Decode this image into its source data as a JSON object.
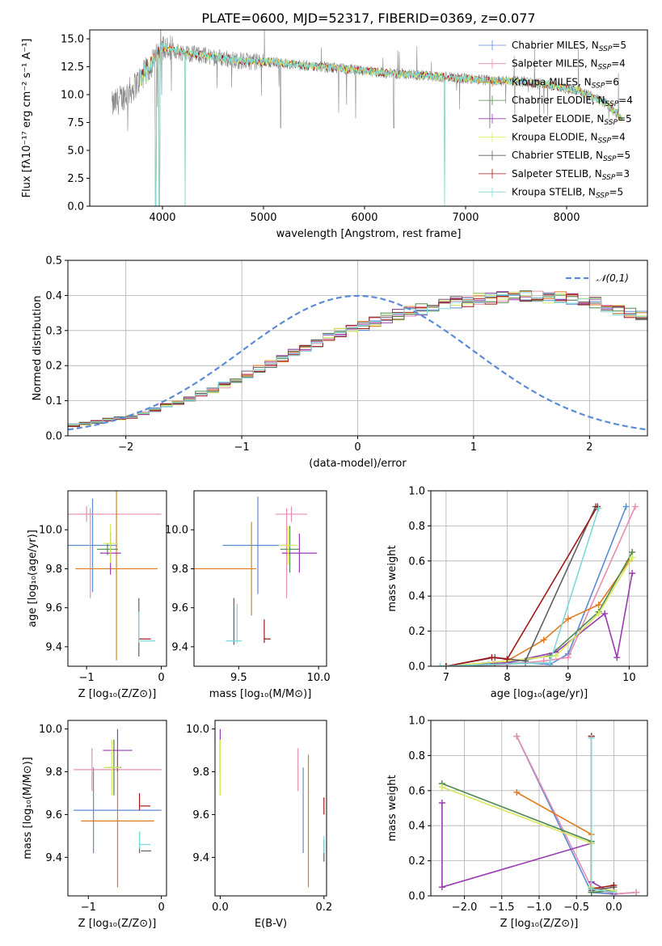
{
  "colors": [
    "#5b8bd6",
    "#e88cb0",
    "#e07b20",
    "#4e8a4e",
    "#9a3aaf",
    "#d8e860",
    "#606060",
    "#a01818",
    "#7fd8d8"
  ],
  "chart_data": [
    {
      "type": "line",
      "title": "PLATE=0600, MJD=52317, FIBERID=0369, z=0.077",
      "xlabel": "wavelength [Angstrom, rest frame]",
      "ylabel": "Flux [fλ10⁻¹⁷ erg cm⁻² s⁻¹ A⁻¹]",
      "xlim": [
        3280,
        8800
      ],
      "ylim": [
        0,
        15.8
      ],
      "xticks": [
        4000,
        5000,
        6000,
        7000,
        8000
      ],
      "xtick_labels": [
        "4000",
        "5000",
        "6000",
        "7000",
        "8000"
      ],
      "yticks": [
        0,
        2.5,
        5,
        7.5,
        10,
        12.5,
        15
      ],
      "ytick_labels": [
        "0.0",
        "2.5",
        "5.0",
        "7.5",
        "10.0",
        "12.5",
        "15.0"
      ],
      "grid": false,
      "legend": "top-right",
      "legend_entries": [
        "Chabrier MILES, N_SSP=5",
        "Salpeter MILES, N_SSP=4",
        "Kroupa MILES, N_SSP=6",
        "Chabrier ELODIE, N_SSP=4",
        "Salpeter ELODIE, N_SSP=5",
        "Kroupa ELODIE, N_SSP=4",
        "Chabrier STELIB, N_SSP=5",
        "Salpeter STELIB, N_SSP=3",
        "Kroupa STELIB, N_SSP=5"
      ],
      "model_continuum": {
        "x": [
          3500,
          3700,
          3900,
          4000,
          4200,
          4500,
          4800,
          5100,
          5400,
          5700,
          6000,
          6300,
          6600,
          6900,
          7200,
          7500,
          7800,
          8100,
          8400,
          8550
        ],
        "y": [
          9.0,
          10.5,
          12.8,
          14.2,
          13.8,
          13.4,
          13.0,
          12.9,
          12.6,
          12.4,
          12.1,
          11.9,
          11.7,
          11.5,
          11.3,
          11.2,
          10.9,
          10.4,
          9.2,
          7.8
        ]
      }
    },
    {
      "type": "step",
      "xlabel": "(data-model)/error",
      "ylabel": "Normed distribution",
      "xlim": [
        -2.5,
        2.5
      ],
      "ylim": [
        0,
        0.5
      ],
      "xticks": [
        -2,
        -1,
        0,
        1,
        2
      ],
      "xtick_labels": [
        "−2",
        "−1",
        "0",
        "1",
        "2"
      ],
      "yticks": [
        0,
        0.1,
        0.2,
        0.3,
        0.4,
        0.5
      ],
      "ytick_labels": [
        "0.0",
        "0.1",
        "0.2",
        "0.3",
        "0.4",
        "0.5"
      ],
      "grid": true,
      "legend": "top-right",
      "legend_entries": [
        "𝒩(0,1)"
      ],
      "bin_width": 0.1,
      "bin_start": -2.5,
      "envelope": [
        0.03,
        0.035,
        0.04,
        0.045,
        0.05,
        0.055,
        0.065,
        0.075,
        0.085,
        0.095,
        0.105,
        0.12,
        0.13,
        0.145,
        0.16,
        0.175,
        0.19,
        0.205,
        0.22,
        0.235,
        0.25,
        0.265,
        0.28,
        0.295,
        0.305,
        0.315,
        0.325,
        0.335,
        0.345,
        0.355,
        0.36,
        0.37,
        0.375,
        0.38,
        0.385,
        0.39,
        0.39,
        0.395,
        0.395,
        0.398,
        0.398,
        0.395,
        0.395,
        0.39,
        0.385,
        0.38,
        0.37,
        0.36,
        0.35,
        0.34,
        0.33,
        0.32,
        0.305,
        0.29,
        0.275,
        0.26,
        0.245,
        0.23,
        0.215,
        0.2,
        0.185,
        0.17,
        0.155,
        0.14,
        0.125,
        0.11,
        0.095,
        0.085,
        0.075,
        0.065,
        0.06,
        0.055,
        0.05,
        0.045,
        0.04,
        0.037,
        0.034,
        0.031,
        0.029,
        0.027,
        0.025,
        0.023,
        0.022,
        0.021,
        0.02,
        0.02,
        0.02,
        0.02,
        0.02,
        0.02
      ]
    },
    {
      "type": "errorbar",
      "xlabel": "Z [log₁₀(Z/Z⊙)]",
      "ylabel": "age  [log₁₀(age/yr)]",
      "xlim": [
        -1.25,
        0.07
      ],
      "ylim": [
        9.3,
        10.2
      ],
      "xticks": [
        -1,
        0
      ],
      "xtick_labels": [
        "−1",
        "0"
      ],
      "yticks": [
        9.4,
        9.6,
        9.8,
        10.0
      ],
      "ytick_labels": [
        "9.4",
        "9.6",
        "9.8",
        "10.0"
      ],
      "points": [
        {
          "x": -0.92,
          "xe": 0.33,
          "y": 9.92,
          "ye": 0.24,
          "c": 0
        },
        {
          "x": -1.0,
          "xe": 0.25,
          "y": 10.08,
          "ye": 0.04,
          "c": 1
        },
        {
          "x": -0.55,
          "xe": 0.55,
          "y": 10.08,
          "ye": 0.0,
          "c": 1
        },
        {
          "x": -0.95,
          "xe": 0.0,
          "y": 9.88,
          "ye": 0.23,
          "c": 1
        },
        {
          "x": -0.6,
          "xe": 0.55,
          "y": 9.8,
          "ye": 0.47,
          "c": 2
        },
        {
          "x": -0.72,
          "xe": 0.14,
          "y": 9.9,
          "ye": 0.03,
          "c": 3
        },
        {
          "x": -0.68,
          "xe": 0.14,
          "y": 9.88,
          "ye": 0.11,
          "c": 4
        },
        {
          "x": -0.68,
          "xe": 0.1,
          "y": 9.93,
          "ye": 0.1,
          "c": 5
        },
        {
          "x": -0.3,
          "xe": 0.0,
          "y": 9.5,
          "ye": 0.15,
          "c": 6
        },
        {
          "x": -0.22,
          "xe": 0.08,
          "y": 9.44,
          "ye": 0.0,
          "c": 7
        },
        {
          "x": -0.3,
          "xe": 0.0,
          "y": 9.5,
          "ye": 0.08,
          "c": 8
        },
        {
          "x": -0.18,
          "xe": 0.1,
          "y": 9.43,
          "ye": 0.0,
          "c": 8
        }
      ]
    },
    {
      "type": "errorbar",
      "xlabel": "mass [log₁₀(M/M⊙)]",
      "ylabel": "",
      "xlim": [
        9.22,
        10.05
      ],
      "ylim": [
        9.3,
        10.2
      ],
      "xticks": [
        9.5,
        10.0
      ],
      "xtick_labels": [
        "9.5",
        "10.0"
      ],
      "yticks": [
        9.4,
        9.6,
        9.8,
        10.0
      ],
      "ytick_labels": [
        "9.4",
        "9.6",
        "9.8",
        "10.0"
      ],
      "points": [
        {
          "x": 9.62,
          "xe": 0.22,
          "y": 9.92,
          "ye": 0.25,
          "c": 0
        },
        {
          "x": 9.83,
          "xe": 0.1,
          "y": 10.08,
          "ye": 0.04,
          "c": 1
        },
        {
          "x": 9.8,
          "xe": 0.0,
          "y": 9.88,
          "ye": 0.23,
          "c": 1
        },
        {
          "x": 9.58,
          "xe": 0.0,
          "y": 9.8,
          "ye": 0.24,
          "c": 2
        },
        {
          "x": 9.39,
          "xe": 0.22,
          "y": 9.8,
          "ye": 0.0,
          "c": 2
        },
        {
          "x": 9.82,
          "xe": 0.06,
          "y": 9.9,
          "ye": 0.12,
          "c": 3
        },
        {
          "x": 9.88,
          "xe": 0.11,
          "y": 9.88,
          "ye": 0.1,
          "c": 4
        },
        {
          "x": 9.81,
          "xe": 0.06,
          "y": 9.92,
          "ye": 0.1,
          "c": 5
        },
        {
          "x": 9.47,
          "xe": 0.0,
          "y": 9.53,
          "ye": 0.12,
          "c": 6
        },
        {
          "x": 9.66,
          "xe": 0.0,
          "y": 9.48,
          "ye": 0.06,
          "c": 7
        },
        {
          "x": 9.68,
          "xe": 0.02,
          "y": 9.44,
          "ye": 0.0,
          "c": 7
        },
        {
          "x": 9.49,
          "xe": 0.0,
          "y": 9.52,
          "ye": 0.1,
          "c": 8
        },
        {
          "x": 9.47,
          "xe": 0.05,
          "y": 9.43,
          "ye": 0.0,
          "c": 8
        }
      ]
    },
    {
      "type": "line",
      "xlabel": "age  [log₁₀(age/yr)]",
      "ylabel": "mass weight",
      "xlim": [
        6.75,
        10.3
      ],
      "ylim": [
        0,
        1.0
      ],
      "xticks": [
        7,
        8,
        9,
        10
      ],
      "xtick_labels": [
        "7",
        "8",
        "9",
        "10"
      ],
      "yticks": [
        0,
        0.2,
        0.4,
        0.6,
        0.8,
        1.0
      ],
      "ytick_labels": [
        "0.0",
        "0.2",
        "0.4",
        "0.6",
        "0.8",
        "1.0"
      ],
      "grid": true,
      "series": [
        {
          "c": 0,
          "x": [
            7.0,
            8.3,
            8.7,
            9.0,
            9.95
          ],
          "y": [
            0.0,
            0.02,
            0.01,
            0.07,
            0.91
          ]
        },
        {
          "c": 1,
          "x": [
            7.0,
            8.0,
            8.6,
            9.0,
            10.1
          ],
          "y": [
            0.0,
            0.01,
            0.03,
            0.05,
            0.91
          ]
        },
        {
          "c": 2,
          "x": [
            7.0,
            8.0,
            8.6,
            9.0,
            9.5,
            10.0
          ],
          "y": [
            0.0,
            0.03,
            0.15,
            0.27,
            0.35,
            0.6
          ]
        },
        {
          "c": 3,
          "x": [
            7.0,
            7.8,
            8.7,
            9.5,
            10.05
          ],
          "y": [
            0.0,
            0.01,
            0.06,
            0.31,
            0.65
          ]
        },
        {
          "c": 4,
          "x": [
            7.0,
            8.0,
            8.8,
            9.6,
            9.8,
            10.05
          ],
          "y": [
            0.0,
            0.02,
            0.08,
            0.3,
            0.05,
            0.53
          ]
        },
        {
          "c": 5,
          "x": [
            7.0,
            8.0,
            8.8,
            9.5,
            10.05
          ],
          "y": [
            0.0,
            0.03,
            0.06,
            0.3,
            0.62
          ]
        },
        {
          "c": 6,
          "x": [
            7.0,
            7.8,
            8.3,
            9.45
          ],
          "y": [
            0.0,
            0.05,
            0.03,
            0.91
          ]
        },
        {
          "c": 7,
          "x": [
            7.0,
            7.75,
            8.0,
            9.48
          ],
          "y": [
            0.0,
            0.05,
            0.04,
            0.91
          ]
        },
        {
          "c": 8,
          "x": [
            6.9,
            7.7,
            8.7,
            9.5
          ],
          "y": [
            0.0,
            0.01,
            0.02,
            0.9
          ]
        }
      ]
    },
    {
      "type": "errorbar",
      "xlabel": "Z [log₁₀(Z/Z⊙)]",
      "ylabel": "mass [log₁₀(M/M⊙)]",
      "xlim": [
        -1.28,
        0.07
      ],
      "ylim": [
        9.22,
        10.04
      ],
      "xticks": [
        -1,
        0
      ],
      "xtick_labels": [
        "−1",
        "0"
      ],
      "yticks": [
        9.4,
        9.6,
        9.8,
        10.0
      ],
      "ytick_labels": [
        "9.4",
        "9.6",
        "9.8",
        "10.0"
      ],
      "points": [
        {
          "x": -0.6,
          "xe": 0.6,
          "y": 9.62,
          "ye": 0.0,
          "c": 0
        },
        {
          "x": -0.93,
          "xe": 0.0,
          "y": 9.62,
          "ye": 0.2,
          "c": 0
        },
        {
          "x": -0.6,
          "xe": 0.6,
          "y": 9.81,
          "ye": 0.0,
          "c": 1
        },
        {
          "x": -0.95,
          "xe": 0.0,
          "y": 9.81,
          "ye": 0.1,
          "c": 1
        },
        {
          "x": -0.6,
          "xe": 0.5,
          "y": 9.57,
          "ye": 0.0,
          "c": 2
        },
        {
          "x": -0.6,
          "xe": 0.0,
          "y": 9.57,
          "ye": 0.31,
          "c": 2
        },
        {
          "x": -0.65,
          "xe": 0.1,
          "y": 9.82,
          "ye": 0.13,
          "c": 3
        },
        {
          "x": -0.6,
          "xe": 0.2,
          "y": 9.9,
          "ye": 0.1,
          "c": 4
        },
        {
          "x": -0.68,
          "xe": 0.12,
          "y": 9.82,
          "ye": 0.13,
          "c": 5
        },
        {
          "x": -0.3,
          "xe": 0.0,
          "y": 9.47,
          "ye": 0.05,
          "c": 6
        },
        {
          "x": -0.21,
          "xe": 0.07,
          "y": 9.43,
          "ye": 0.0,
          "c": 6
        },
        {
          "x": -0.3,
          "xe": 0.0,
          "y": 9.66,
          "ye": 0.04,
          "c": 7
        },
        {
          "x": -0.22,
          "xe": 0.07,
          "y": 9.64,
          "ye": 0.0,
          "c": 7
        },
        {
          "x": -0.3,
          "xe": 0.0,
          "y": 9.48,
          "ye": 0.04,
          "c": 8
        },
        {
          "x": -0.22,
          "xe": 0.07,
          "y": 9.46,
          "ye": 0.0,
          "c": 8
        }
      ]
    },
    {
      "type": "errorbar",
      "xlabel": "E(B-V)",
      "ylabel": "",
      "xlim": [
        -0.01,
        0.205
      ],
      "ylim": [
        9.22,
        10.04
      ],
      "xticks": [
        0.0,
        0.2
      ],
      "xtick_labels": [
        "0.0",
        "0.2"
      ],
      "yticks": [
        9.4,
        9.6,
        9.8,
        10.0
      ],
      "ytick_labels": [
        "9.4",
        "9.6",
        "9.8",
        "10.0"
      ],
      "points": [
        {
          "x": 0.16,
          "xe": 0.0,
          "y": 9.62,
          "ye": 0.2,
          "c": 0
        },
        {
          "x": 0.15,
          "xe": 0.0,
          "y": 9.81,
          "ye": 0.1,
          "c": 1
        },
        {
          "x": 0.17,
          "xe": 0.0,
          "y": 9.57,
          "ye": 0.31,
          "c": 2
        },
        {
          "x": 0.0,
          "xe": 0.0,
          "y": 9.82,
          "ye": 0.13,
          "c": 3
        },
        {
          "x": 0.0,
          "xe": 0.0,
          "y": 9.9,
          "ye": 0.1,
          "c": 4
        },
        {
          "x": 0.0,
          "xe": 0.0,
          "y": 9.82,
          "ye": 0.13,
          "c": 5
        },
        {
          "x": 0.2,
          "xe": 0.0,
          "y": 9.43,
          "ye": 0.05,
          "c": 6
        },
        {
          "x": 0.2,
          "xe": 0.0,
          "y": 9.64,
          "ye": 0.04,
          "c": 7
        },
        {
          "x": 0.2,
          "xe": 0.0,
          "y": 9.46,
          "ye": 0.04,
          "c": 8
        }
      ]
    },
    {
      "type": "line",
      "xlabel": "Z [log₁₀(Z/Z⊙)]",
      "ylabel": "mass weight",
      "xlim": [
        -2.45,
        0.45
      ],
      "ylim": [
        0,
        1.0
      ],
      "xticks": [
        -2.0,
        -1.5,
        -1.0,
        -0.5,
        0.0
      ],
      "xtick_labels": [
        "−2.0",
        "−1.5",
        "−1.0",
        "−0.5",
        "0.0"
      ],
      "yticks": [
        0,
        0.2,
        0.4,
        0.6,
        0.8,
        1.0
      ],
      "ytick_labels": [
        "0.0",
        "0.2",
        "0.4",
        "0.6",
        "0.8",
        "1.0"
      ],
      "grid": true,
      "series": [
        {
          "c": 0,
          "x": [
            -1.3,
            -0.3,
            0.0,
            0.3
          ],
          "y": [
            0.91,
            0.02,
            0.01,
            0.02
          ]
        },
        {
          "c": 1,
          "x": [
            -1.3,
            -0.3,
            0.0,
            0.3
          ],
          "y": [
            0.91,
            0.05,
            0.01,
            0.02
          ]
        },
        {
          "c": 2,
          "x": [
            -1.3,
            -0.3,
            -0.3,
            0.0
          ],
          "y": [
            0.59,
            0.35,
            0.02,
            0.03
          ]
        },
        {
          "c": 3,
          "x": [
            -2.3,
            -0.3,
            -0.3,
            0.0
          ],
          "y": [
            0.64,
            0.31,
            0.02,
            0.03
          ]
        },
        {
          "c": 4,
          "x": [
            -2.3,
            -2.3,
            -0.3,
            -0.3,
            0.0
          ],
          "y": [
            0.53,
            0.05,
            0.3,
            0.08,
            0.01
          ]
        },
        {
          "c": 5,
          "x": [
            -2.3,
            -0.3,
            -0.3,
            0.0
          ],
          "y": [
            0.62,
            0.3,
            0.05,
            0.03
          ]
        },
        {
          "c": 6,
          "x": [
            -0.3,
            -0.3,
            0.0
          ],
          "y": [
            0.91,
            0.03,
            0.05
          ]
        },
        {
          "c": 7,
          "x": [
            -0.3,
            -0.3,
            0.0
          ],
          "y": [
            0.91,
            0.04,
            0.06
          ]
        },
        {
          "c": 8,
          "x": [
            -0.3,
            -0.3,
            0.0
          ],
          "y": [
            0.9,
            0.04,
            0.02
          ]
        }
      ]
    }
  ]
}
